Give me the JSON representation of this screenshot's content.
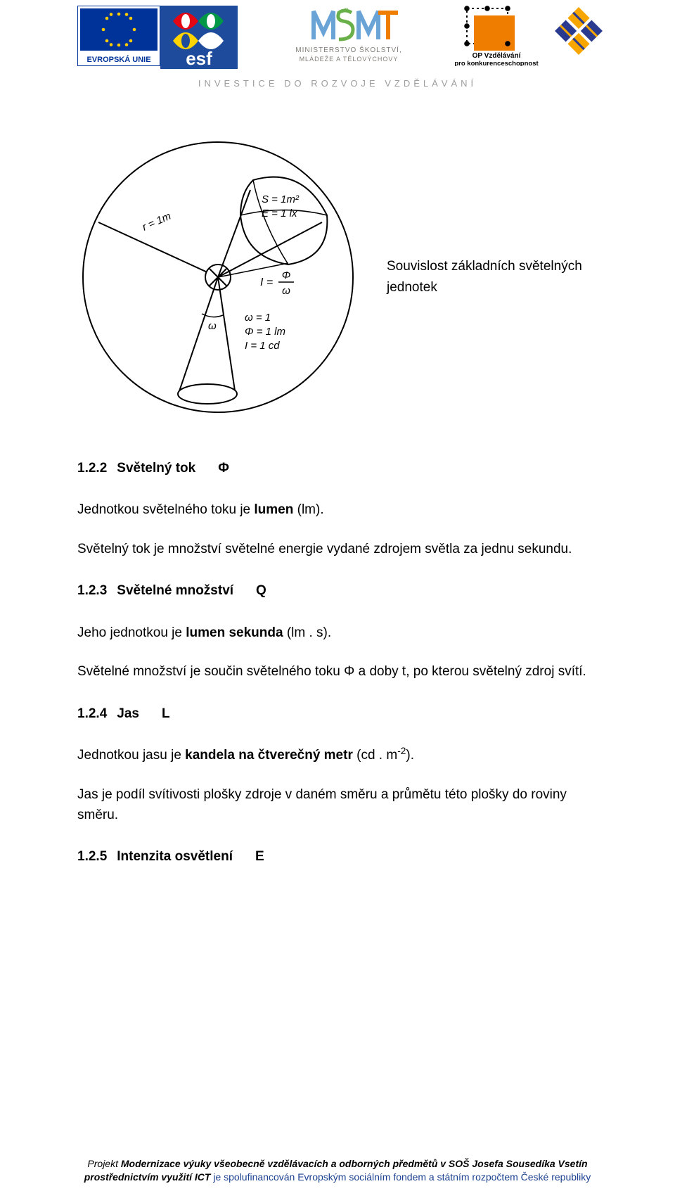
{
  "header": {
    "logos": {
      "eu": {
        "label_top": "",
        "label_bottom": "EVROPSKÁ UNIE",
        "flag_bg": "#003399",
        "star_color": "#ffcc00",
        "label_bg": "#ffffff",
        "label_color": "#003399",
        "border": "#003399"
      },
      "esf": {
        "text": "esf",
        "colors": [
          "#e30613",
          "#009846",
          "#ffd400",
          "#2a3a8f"
        ],
        "label_bg": "#1e4b9b",
        "label_color": "#ffffff"
      },
      "msmt": {
        "line1": "MINISTERSTVO ŠKOLSTVÍ,",
        "line2": "MLÁDEŽE A TĚLOVÝCHOVY",
        "text_color": "#827f77",
        "accent1": "#6aa3d6",
        "accent2": "#6ab04a",
        "accent3": "#ef7d00"
      },
      "op": {
        "line1": "OP Vzdělávání",
        "line2": "pro konkurenceschopnost",
        "text_color": "#000000",
        "square_color": "#ef7d00"
      },
      "trophy": {
        "colors": [
          "#f7a600",
          "#2a3a8f"
        ]
      }
    },
    "tagline": "INVESTICE DO ROZVOJE VZDĚLÁVÁNÍ"
  },
  "diagram": {
    "circle_stroke": "#000000",
    "bg": "#ffffff",
    "labels": {
      "area": "S = 1m²",
      "illum": "E = 1 lx",
      "radius": "r = 1m",
      "intensity_formula": "I = Φ / ω",
      "omega": "ω",
      "l1": "ω = 1",
      "l2": "Φ = 1 lm",
      "l3": "I  = 1 cd"
    },
    "label_fontsize": 14,
    "caption_line1": "Souvislost základních světelných",
    "caption_line2": "jednotek"
  },
  "sections": [
    {
      "num": "1.2.2",
      "title": "Světelný tok",
      "symbol": "Φ",
      "paragraphs": [
        "Jednotkou světelného toku je <b>lumen</b> (lm).",
        "Světelný tok je množství světelné energie vydané zdrojem světla za jednu sekundu."
      ]
    },
    {
      "num": "1.2.3",
      "title": "Světelné množství",
      "symbol": "Q",
      "paragraphs": [
        "Jeho jednotkou je <b>lumen sekunda</b> (lm . s).",
        "Světelné množství je součin světelného toku Φ a doby t, po kterou světelný zdroj svítí."
      ]
    },
    {
      "num": "1.2.4",
      "title": "Jas",
      "symbol": "L",
      "paragraphs": [
        "Jednotkou jasu je <b>kandela na čtverečný metr</b> (cd . m<span class=\"sub\">-2</span>).",
        "Jas je podíl svítivosti plošky zdroje v daném směru a průmětu této plošky do roviny směru."
      ]
    },
    {
      "num": "1.2.5",
      "title": "Intenzita osvětlení",
      "symbol": "E",
      "paragraphs": []
    }
  ],
  "footer": {
    "l1_prefix": "Projekt ",
    "l1_main": "Modernizace výuky všeobecně vzdělávacích a odborných předmětů v SOŠ Josefa Sousedíka Vsetín",
    "l2_a": "prostřednictvím využití ICT",
    "l2_b": " je spolufinancován ",
    "l2_c": "Evropským sociálním fondem a státním rozpočtem České republiky"
  },
  "colors": {
    "page_bg": "#ffffff",
    "text": "#000000",
    "tagline": "#9d9d9d",
    "footer_link": "#1b3f8f"
  }
}
